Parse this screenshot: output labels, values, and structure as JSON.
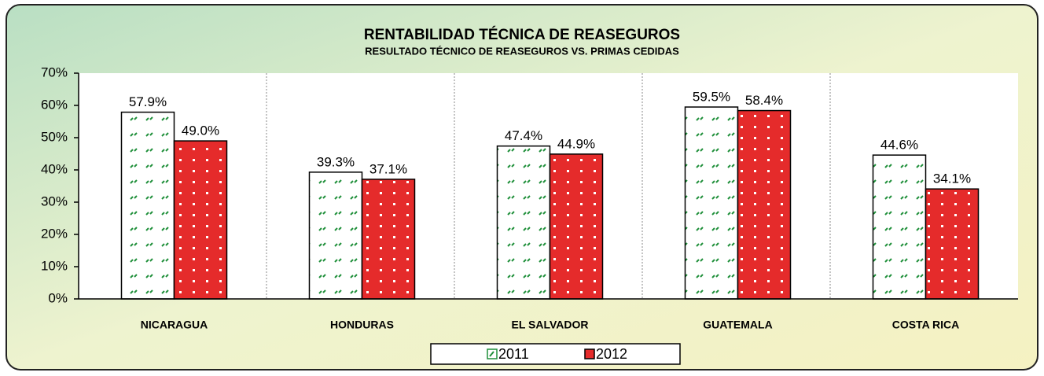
{
  "chart_data": {
    "type": "bar",
    "title": "RENTABILIDAD TÉCNICA DE REASEGUROS",
    "subtitle": "RESULTADO TÉCNICO DE REASEGUROS  VS. PRIMAS CEDIDAS",
    "categories": [
      "NICARAGUA",
      "HONDURAS",
      "EL SALVADOR",
      "GUATEMALA",
      "COSTA RICA"
    ],
    "series": [
      {
        "name": "2011",
        "color": "#1f8f3a",
        "values": [
          57.9,
          39.3,
          47.4,
          59.5,
          44.6
        ],
        "value_labels": [
          "57.9%",
          "39.3%",
          "47.4%",
          "59.5%",
          "44.6%"
        ]
      },
      {
        "name": "2012",
        "color": "#e52b2b",
        "values": [
          49.0,
          37.1,
          44.9,
          58.4,
          34.1
        ],
        "value_labels": [
          "49.0%",
          "37.1%",
          "44.9%",
          "58.4%",
          "34.1%"
        ]
      }
    ],
    "ylim": [
      0,
      70
    ],
    "yticks": [
      {
        "value": 0,
        "label": "0%"
      },
      {
        "value": 10,
        "label": "10%"
      },
      {
        "value": 20,
        "label": "20%"
      },
      {
        "value": 30,
        "label": "30%"
      },
      {
        "value": 40,
        "label": "40%"
      },
      {
        "value": 50,
        "label": "50%"
      },
      {
        "value": 60,
        "label": "60%"
      },
      {
        "value": 70,
        "label": "70%"
      }
    ],
    "legend": "bottom"
  }
}
